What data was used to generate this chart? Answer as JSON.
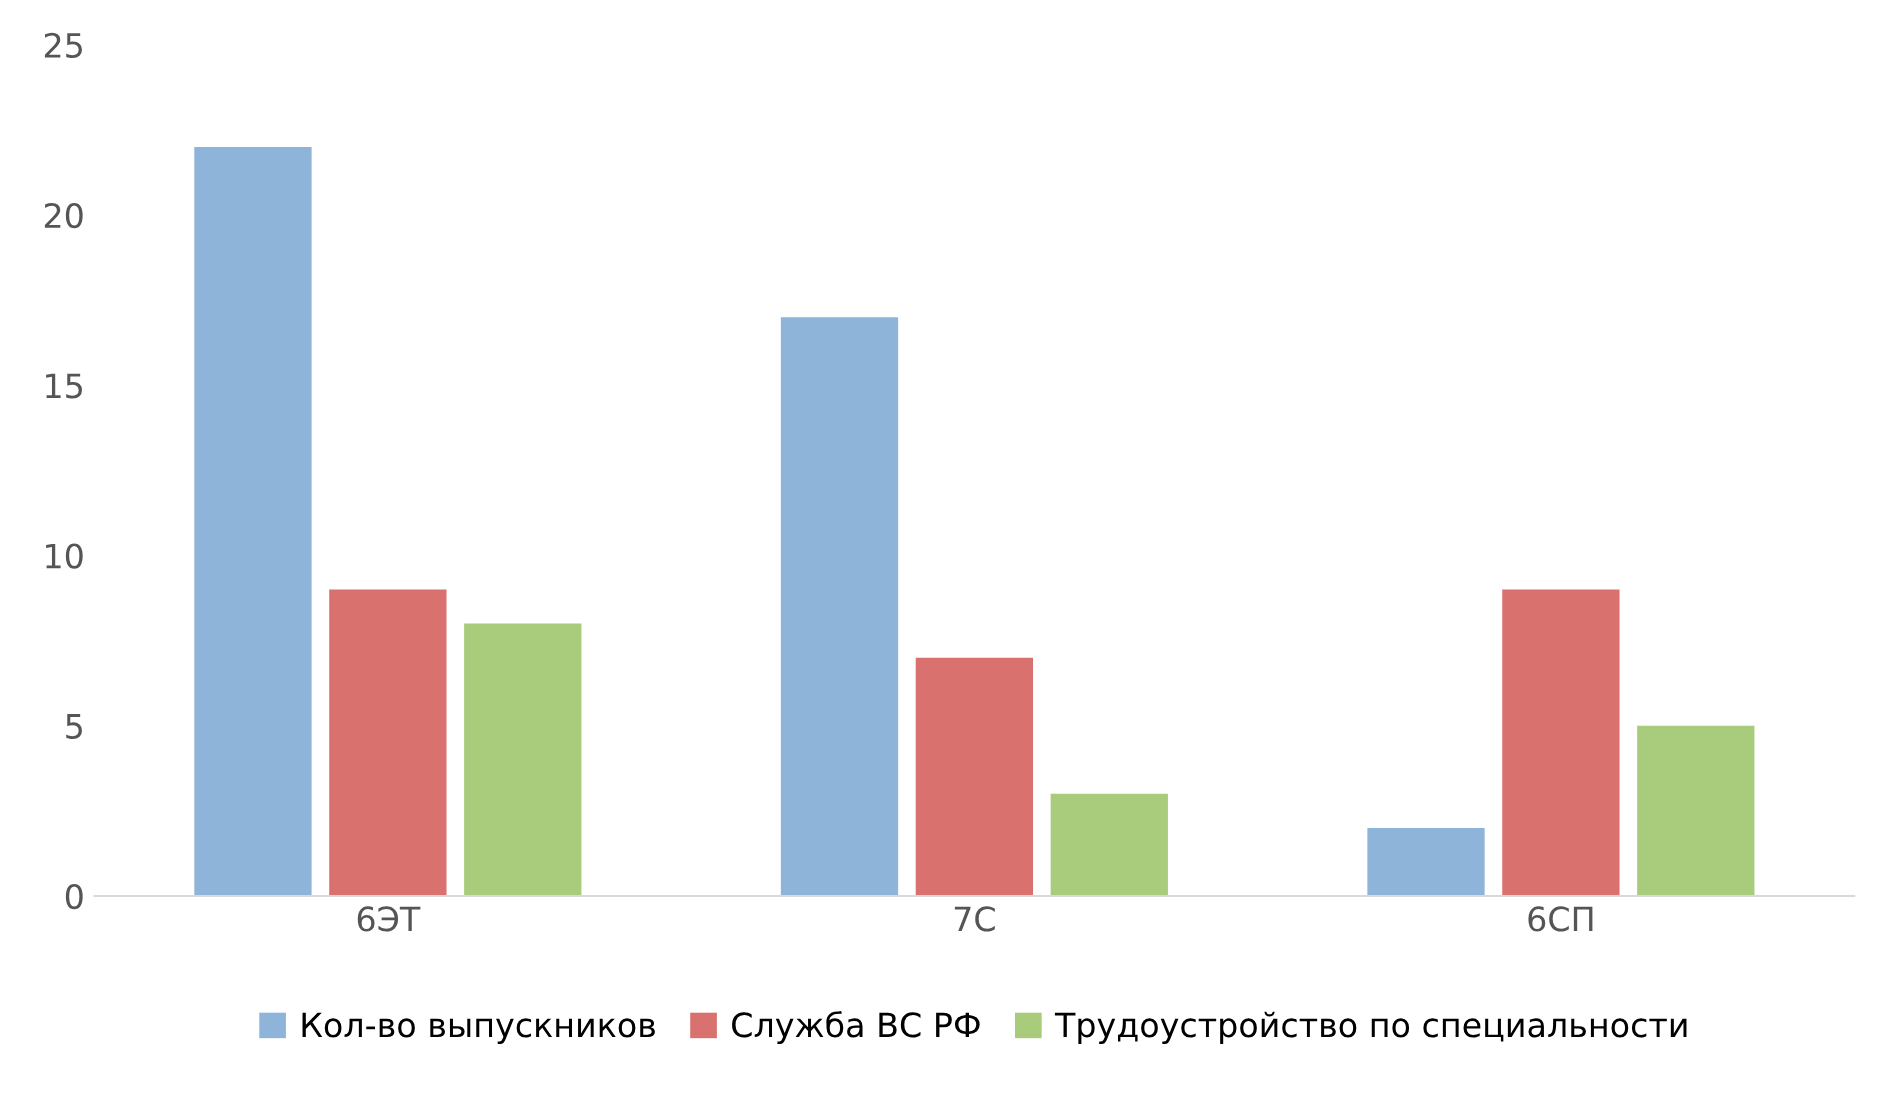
{
  "chart_data": {
    "type": "bar",
    "categories": [
      "6ЭТ",
      "7С",
      "6СП"
    ],
    "series": [
      {
        "name": "Кол-во выпускников",
        "color": "#8fb4da",
        "values": [
          22,
          17,
          2
        ]
      },
      {
        "name": "Служба ВС РФ",
        "color": "#d9716f",
        "values": [
          9,
          7,
          9
        ]
      },
      {
        "name": "Трудоустройство по специальности",
        "color": "#a8cc7c",
        "values": [
          8,
          3,
          5
        ]
      }
    ],
    "ylim": [
      0,
      25
    ],
    "yticks": [
      0,
      5,
      10,
      15,
      20,
      25
    ],
    "grid": false,
    "legend": "bottom"
  }
}
